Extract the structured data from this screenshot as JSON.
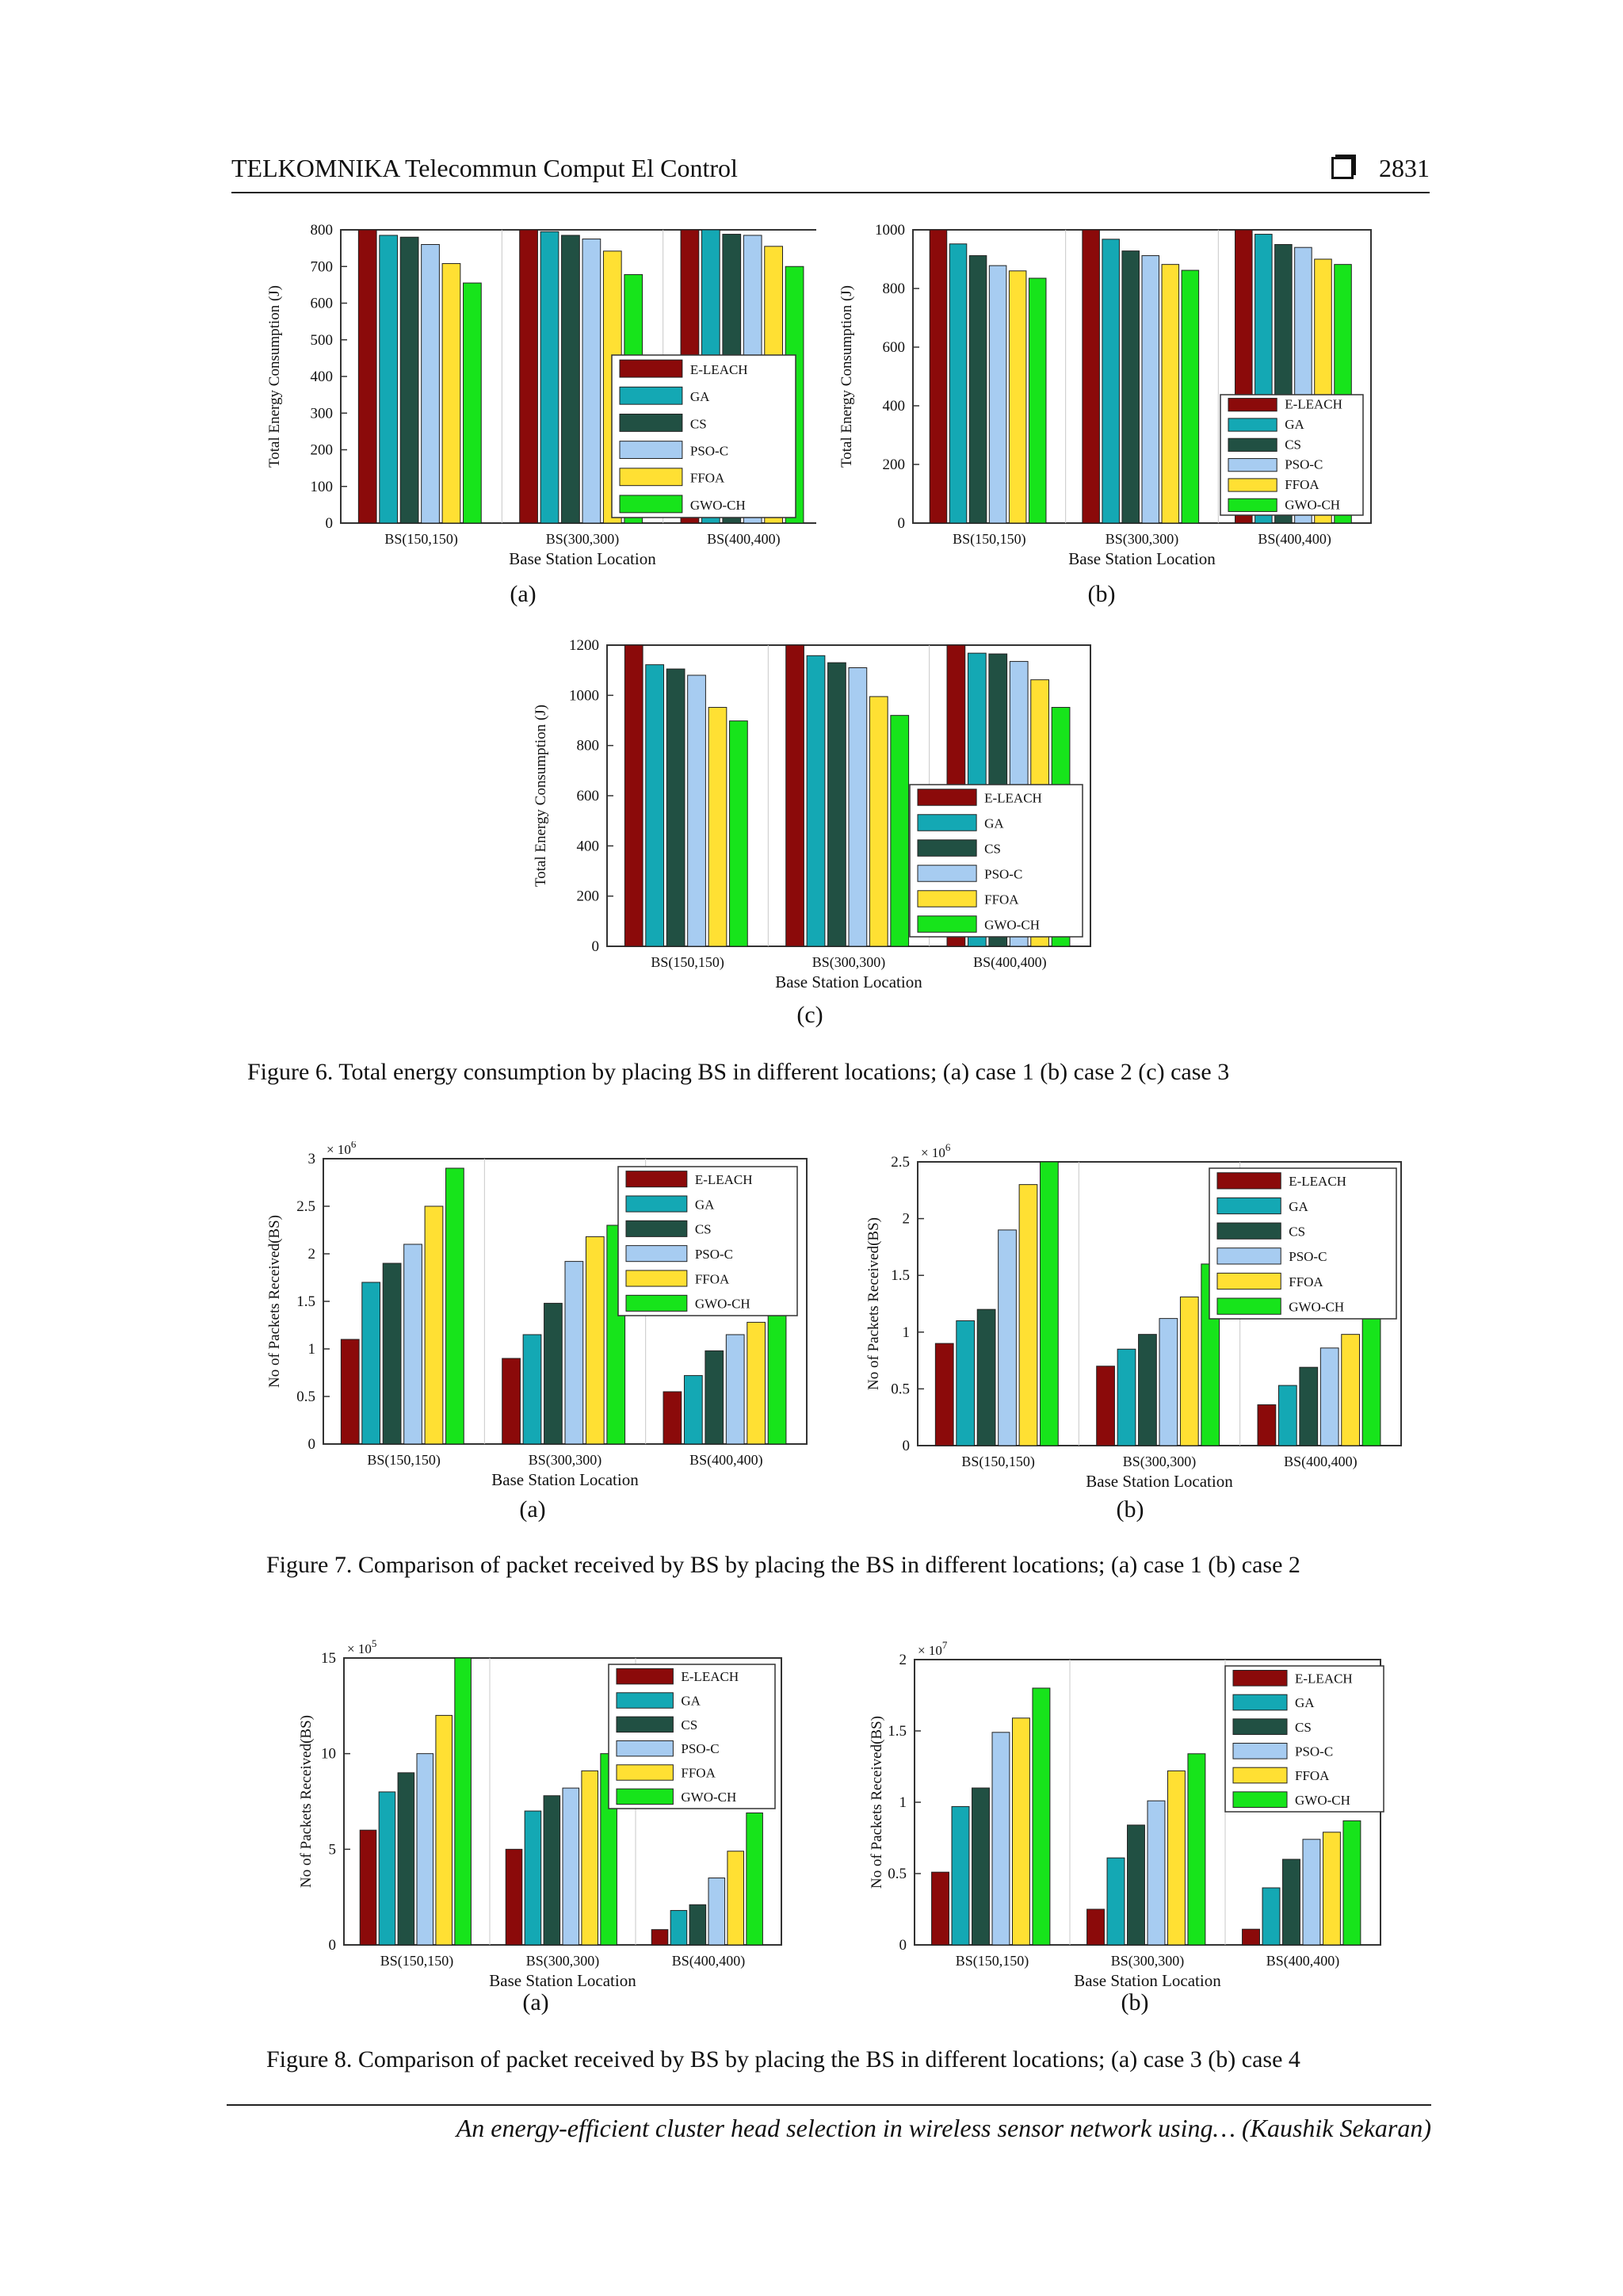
{
  "header": {
    "journal": "TELKOMNIKA Telecommun Comput El Control",
    "page": "2831"
  },
  "captions": {
    "fig6": "Figure 6. Total energy consumption by placing BS in different locations; (a) case 1 (b) case 2 (c) case 3",
    "fig7": "Figure 7. Comparison of packet received by BS by placing the BS in different locations; (a) case 1 (b) case 2",
    "fig8": "Figure 8. Comparison of packet received by BS by placing the BS in different locations; (a) case 3 (b) case 4"
  },
  "sublabels": {
    "a": "(a)",
    "b": "(b)",
    "c": "(c)"
  },
  "footer": "An energy-efficient cluster head selection in wireless sensor network using… (Kaushik Sekaran)",
  "series_colors": [
    "#8b0a0a",
    "#14a8b4",
    "#215043",
    "#a7ccf1",
    "#ffe033",
    "#17e41b"
  ],
  "chart_data": [
    {
      "id": "fig6a",
      "type": "bar",
      "categories": [
        "BS(150,150)",
        "BS(300,300)",
        "BS(400,400)"
      ],
      "xlabel": "Base Station Location",
      "ylabel": "Total Energy Consumption (J)",
      "ylim": [
        0,
        800
      ],
      "yticks": [
        0,
        100,
        200,
        300,
        400,
        500,
        600,
        700,
        800
      ],
      "exponent": "",
      "legend_pos": "bottom-right",
      "series": [
        {
          "name": "E-LEACH",
          "values": [
            800,
            800,
            800
          ]
        },
        {
          "name": "GA",
          "values": [
            785,
            795,
            800
          ]
        },
        {
          "name": "CS",
          "values": [
            780,
            785,
            788
          ]
        },
        {
          "name": "PSO-C",
          "values": [
            760,
            775,
            785
          ]
        },
        {
          "name": "FFOA",
          "values": [
            708,
            742,
            755
          ]
        },
        {
          "name": "GWO-CH",
          "values": [
            655,
            678,
            700
          ]
        }
      ]
    },
    {
      "id": "fig6b",
      "type": "bar",
      "categories": [
        "BS(150,150)",
        "BS(300,300)",
        "BS(400,400)"
      ],
      "xlabel": "Base Station Location",
      "ylabel": "Total Energy Consumption (J)",
      "ylim": [
        0,
        1000
      ],
      "yticks": [
        0,
        200,
        400,
        600,
        800,
        1000
      ],
      "exponent": "",
      "legend_pos": "bottom-right",
      "series": [
        {
          "name": "E-LEACH",
          "values": [
            1000,
            1000,
            1000
          ]
        },
        {
          "name": "GA",
          "values": [
            952,
            968,
            985
          ]
        },
        {
          "name": "CS",
          "values": [
            912,
            928,
            950
          ]
        },
        {
          "name": "PSO-C",
          "values": [
            878,
            912,
            940
          ]
        },
        {
          "name": "FFOA",
          "values": [
            860,
            882,
            900
          ]
        },
        {
          "name": "GWO-CH",
          "values": [
            835,
            862,
            882
          ]
        }
      ]
    },
    {
      "id": "fig6c",
      "type": "bar",
      "categories": [
        "BS(150,150)",
        "BS(300,300)",
        "BS(400,400)"
      ],
      "xlabel": "Base Station Location",
      "ylabel": "Total Energy Consumption (J)",
      "ylim": [
        0,
        1200
      ],
      "yticks": [
        0,
        200,
        400,
        600,
        800,
        1000,
        1200
      ],
      "exponent": "",
      "legend_pos": "bottom-right",
      "series": [
        {
          "name": "E-LEACH",
          "values": [
            1200,
            1200,
            1200
          ]
        },
        {
          "name": "GA",
          "values": [
            1122,
            1158,
            1168
          ]
        },
        {
          "name": "CS",
          "values": [
            1105,
            1130,
            1165
          ]
        },
        {
          "name": "PSO-C",
          "values": [
            1080,
            1110,
            1135
          ]
        },
        {
          "name": "FFOA",
          "values": [
            952,
            995,
            1062
          ]
        },
        {
          "name": "GWO-CH",
          "values": [
            898,
            920,
            952
          ]
        }
      ]
    },
    {
      "id": "fig7a",
      "type": "bar",
      "categories": [
        "BS(150,150)",
        "BS(300,300)",
        "BS(400,400)"
      ],
      "xlabel": "Base Station Location",
      "ylabel": "No of Packets Received(BS)",
      "ylim": [
        0,
        3
      ],
      "yticks": [
        0,
        0.5,
        1,
        1.5,
        2,
        2.5,
        3
      ],
      "exponent": "× 10^6",
      "legend_pos": "top-right",
      "series": [
        {
          "name": "E-LEACH",
          "values": [
            1.1,
            0.9,
            0.55
          ]
        },
        {
          "name": "GA",
          "values": [
            1.7,
            1.15,
            0.72
          ]
        },
        {
          "name": "CS",
          "values": [
            1.9,
            1.48,
            0.98
          ]
        },
        {
          "name": "PSO-C",
          "values": [
            2.1,
            1.92,
            1.15
          ]
        },
        {
          "name": "FFOA",
          "values": [
            2.5,
            2.18,
            1.28
          ]
        },
        {
          "name": "GWO-CH",
          "values": [
            2.9,
            2.3,
            1.45
          ]
        }
      ]
    },
    {
      "id": "fig7b",
      "type": "bar",
      "categories": [
        "BS(150,150)",
        "BS(300,300)",
        "BS(400,400)"
      ],
      "xlabel": "Base Station Location",
      "ylabel": "No of Packets Received(BS)",
      "ylim": [
        0,
        2.5
      ],
      "yticks": [
        0,
        0.5,
        1,
        1.5,
        2,
        2.5
      ],
      "exponent": "× 10^6",
      "legend_pos": "top-right",
      "series": [
        {
          "name": "E-LEACH",
          "values": [
            0.9,
            0.7,
            0.36
          ]
        },
        {
          "name": "GA",
          "values": [
            1.1,
            0.85,
            0.53
          ]
        },
        {
          "name": "CS",
          "values": [
            1.2,
            0.98,
            0.69
          ]
        },
        {
          "name": "PSO-C",
          "values": [
            1.9,
            1.12,
            0.86
          ]
        },
        {
          "name": "FFOA",
          "values": [
            2.3,
            1.31,
            0.98
          ]
        },
        {
          "name": "GWO-CH",
          "values": [
            2.5,
            1.6,
            1.25
          ]
        }
      ]
    },
    {
      "id": "fig8a",
      "type": "bar",
      "categories": [
        "BS(150,150)",
        "BS(300,300)",
        "BS(400,400)"
      ],
      "xlabel": "Base Station Location",
      "ylabel": "No of Packets Received(BS)",
      "ylim": [
        0,
        15
      ],
      "yticks": [
        0,
        5,
        10,
        15
      ],
      "exponent": "× 10^5",
      "legend_pos": "top-right",
      "series": [
        {
          "name": "E-LEACH",
          "values": [
            6,
            5,
            0.8
          ]
        },
        {
          "name": "GA",
          "values": [
            8,
            7,
            1.8
          ]
        },
        {
          "name": "CS",
          "values": [
            9,
            7.8,
            2.1
          ]
        },
        {
          "name": "PSO-C",
          "values": [
            10,
            8.2,
            3.5
          ]
        },
        {
          "name": "FFOA",
          "values": [
            12,
            9.1,
            4.9
          ]
        },
        {
          "name": "GWO-CH",
          "values": [
            15,
            10,
            6.9
          ]
        }
      ]
    },
    {
      "id": "fig8b",
      "type": "bar",
      "categories": [
        "BS(150,150)",
        "BS(300,300)",
        "BS(400,400)"
      ],
      "xlabel": "Base Station Location",
      "ylabel": "No of Packets Received(BS)",
      "ylim": [
        0,
        2
      ],
      "yticks": [
        0,
        0.5,
        1,
        1.5,
        2
      ],
      "exponent": "× 10^7",
      "legend_pos": "top-right",
      "series": [
        {
          "name": "E-LEACH",
          "values": [
            0.51,
            0.25,
            0.11
          ]
        },
        {
          "name": "GA",
          "values": [
            0.97,
            0.61,
            0.4
          ]
        },
        {
          "name": "CS",
          "values": [
            1.1,
            0.84,
            0.6
          ]
        },
        {
          "name": "PSO-C",
          "values": [
            1.49,
            1.01,
            0.74
          ]
        },
        {
          "name": "FFOA",
          "values": [
            1.59,
            1.22,
            0.79
          ]
        },
        {
          "name": "GWO-CH",
          "values": [
            1.8,
            1.34,
            0.87
          ]
        }
      ]
    }
  ]
}
